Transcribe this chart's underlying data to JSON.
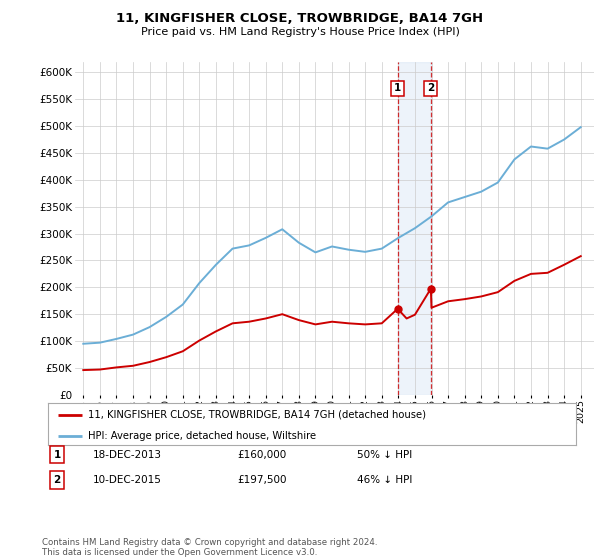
{
  "title": "11, KINGFISHER CLOSE, TROWBRIDGE, BA14 7GH",
  "subtitle": "Price paid vs. HM Land Registry's House Price Index (HPI)",
  "legend_label_red": "11, KINGFISHER CLOSE, TROWBRIDGE, BA14 7GH (detached house)",
  "legend_label_blue": "HPI: Average price, detached house, Wiltshire",
  "transactions": [
    {
      "label": "1",
      "date": "18-DEC-2013",
      "price": 160000,
      "pct": "50% ↓ HPI",
      "year": 2013.96
    },
    {
      "label": "2",
      "date": "10-DEC-2015",
      "price": 197500,
      "pct": "46% ↓ HPI",
      "year": 2015.96
    }
  ],
  "footnote": "Contains HM Land Registry data © Crown copyright and database right 2024.\nThis data is licensed under the Open Government Licence v3.0.",
  "ylim": [
    0,
    620000
  ],
  "yticks": [
    0,
    50000,
    100000,
    150000,
    200000,
    250000,
    300000,
    350000,
    400000,
    450000,
    500000,
    550000,
    600000
  ],
  "ytick_labels": [
    "£0",
    "£50K",
    "£100K",
    "£150K",
    "£200K",
    "£250K",
    "£300K",
    "£350K",
    "£400K",
    "£450K",
    "£500K",
    "£550K",
    "£600K"
  ],
  "hpi_color": "#6baed6",
  "red_color": "#cc0000",
  "shade_color": "#c6d9f0",
  "dashed_color": "#cc0000",
  "background_color": "#ffffff",
  "grid_color": "#cccccc",
  "xlim_left": 1994.5,
  "xlim_right": 2025.8,
  "xtick_years": [
    1995,
    1996,
    1997,
    1998,
    1999,
    2000,
    2001,
    2002,
    2003,
    2004,
    2005,
    2006,
    2007,
    2008,
    2009,
    2010,
    2011,
    2012,
    2013,
    2014,
    2015,
    2016,
    2017,
    2018,
    2019,
    2020,
    2021,
    2022,
    2023,
    2024,
    2025
  ],
  "hpi_years": [
    1995,
    1996,
    1997,
    1998,
    1999,
    2000,
    2001,
    2002,
    2003,
    2004,
    2005,
    2006,
    2007,
    2008,
    2009,
    2010,
    2011,
    2012,
    2013,
    2014,
    2015,
    2016,
    2017,
    2018,
    2019,
    2020,
    2021,
    2022,
    2023,
    2024,
    2025
  ],
  "hpi_values": [
    95000,
    97000,
    104000,
    112000,
    126000,
    145000,
    168000,
    208000,
    242000,
    272000,
    278000,
    292000,
    308000,
    283000,
    265000,
    276000,
    270000,
    266000,
    272000,
    292000,
    310000,
    332000,
    358000,
    368000,
    378000,
    395000,
    438000,
    462000,
    458000,
    475000,
    498000
  ],
  "red_years": [
    1995,
    1996,
    1997,
    1998,
    1999,
    2000,
    2001,
    2002,
    2003,
    2004,
    2005,
    2006,
    2007,
    2008,
    2009,
    2010,
    2011,
    2012,
    2013,
    2013.96,
    2014.5,
    2015,
    2015.96,
    2016,
    2017,
    2018,
    2019,
    2020,
    2021,
    2022,
    2023,
    2024,
    2025
  ],
  "red_values": [
    46000,
    47000,
    51000,
    54000,
    61000,
    70000,
    81000,
    101000,
    118000,
    133000,
    136000,
    142000,
    150000,
    139000,
    131000,
    136000,
    133000,
    131000,
    133000,
    160000,
    142000,
    149000,
    197500,
    162000,
    174000,
    178000,
    183000,
    191000,
    212000,
    225000,
    227000,
    242000,
    258000
  ]
}
